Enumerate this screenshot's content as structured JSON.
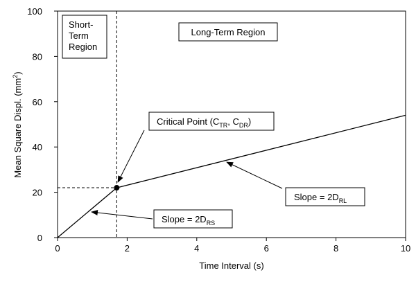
{
  "chart_data": {
    "type": "line",
    "xlabel": "Time Interval (s)",
    "ylabel": {
      "base": "Mean Square Displ. (mm",
      "sup": "2",
      "end": ")"
    },
    "xlim": [
      0,
      10
    ],
    "ylim": [
      0,
      100
    ],
    "x_ticks": [
      "0",
      "2",
      "4",
      "6",
      "8",
      "10"
    ],
    "y_ticks": [
      "0",
      "20",
      "40",
      "60",
      "80",
      "100"
    ],
    "series": [
      {
        "x": [
          0,
          1.7,
          10
        ],
        "y": [
          0,
          22,
          54
        ]
      }
    ],
    "critical_point": {
      "x": 1.7,
      "y": 22
    },
    "regions": {
      "short_term": [
        "Short-",
        "Term",
        "Region"
      ],
      "long_term": "Long-Term Region"
    },
    "annotations": {
      "critical": {
        "pre": "Critical Point (C",
        "sub1": "TR",
        "mid": ", C",
        "sub2": "DR",
        "post": ")"
      },
      "slope_long": {
        "pre": "Slope = 2D",
        "sub": "RL"
      },
      "slope_short": {
        "pre": "Slope = 2D",
        "sub": "RS"
      }
    }
  }
}
